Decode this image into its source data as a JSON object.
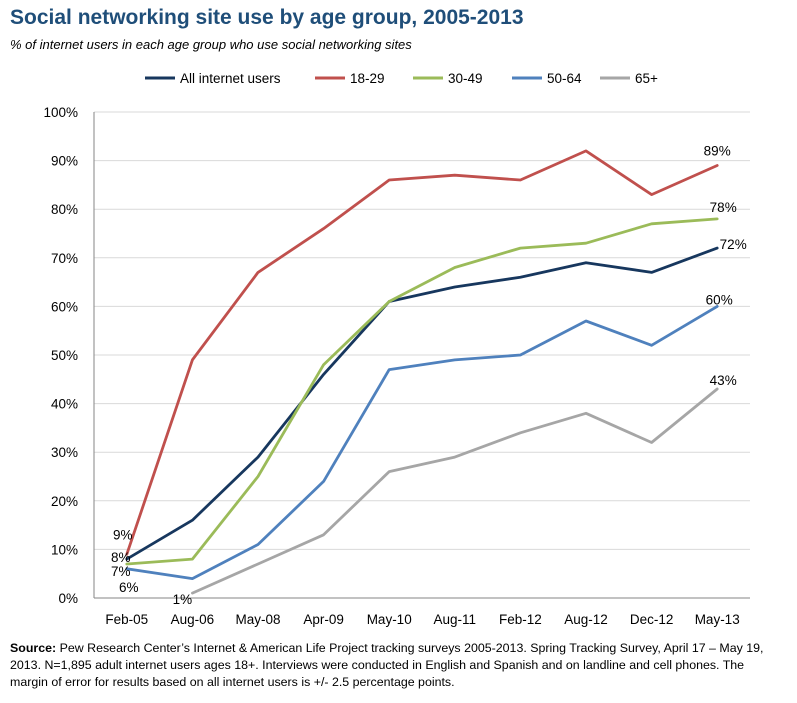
{
  "header": {
    "title": "Social networking site use by age group, 2005-2013",
    "subtitle": "% of internet users in each age group who use social networking sites"
  },
  "colors": {
    "title": "#1f4e79",
    "all": "#17375e",
    "age_18_29": "#c0504d",
    "age_30_49": "#9bbb59",
    "age_50_64": "#4f81bd",
    "age_65": "#a6a6a6"
  },
  "chart_data": {
    "type": "line",
    "title": "Social networking site use by age group, 2005-2013",
    "xlabel": "",
    "ylabel": "",
    "ylim": [
      0,
      100
    ],
    "yticks": [
      "0%",
      "10%",
      "20%",
      "30%",
      "40%",
      "50%",
      "60%",
      "70%",
      "80%",
      "90%",
      "100%"
    ],
    "grid": true,
    "legend": "top",
    "categories": [
      "Feb-05",
      "Aug-06",
      "May-08",
      "Apr-09",
      "May-10",
      "Aug-11",
      "Feb-12",
      "Aug-12",
      "Dec-12",
      "May-13"
    ],
    "series": [
      {
        "name": "All internet users",
        "color": "#17375e",
        "values": [
          8,
          16,
          29,
          46,
          61,
          64,
          66,
          69,
          67,
          72
        ]
      },
      {
        "name": "18-29",
        "color": "#c0504d",
        "values": [
          9,
          49,
          67,
          76,
          86,
          87,
          86,
          92,
          83,
          89
        ]
      },
      {
        "name": "30-49",
        "color": "#9bbb59",
        "values": [
          7,
          8,
          25,
          48,
          61,
          68,
          72,
          73,
          77,
          78
        ]
      },
      {
        "name": "50-64",
        "color": "#4f81bd",
        "values": [
          6,
          4,
          11,
          24,
          47,
          49,
          50,
          57,
          52,
          60
        ]
      },
      {
        "name": "65+",
        "color": "#a6a6a6",
        "values": [
          null,
          1,
          7,
          13,
          26,
          29,
          34,
          38,
          32,
          43
        ]
      }
    ],
    "data_labels": [
      {
        "text": "9%",
        "series": "18-29",
        "x": "Feb-05",
        "value": 9
      },
      {
        "text": "8%",
        "series": "All internet users",
        "x": "Feb-05",
        "value": 8
      },
      {
        "text": "7%",
        "series": "30-49",
        "x": "Feb-05",
        "value": 7
      },
      {
        "text": "6%",
        "series": "50-64",
        "x": "Feb-05",
        "value": 6
      },
      {
        "text": "1%",
        "series": "65+",
        "x": "Aug-06",
        "value": 1
      },
      {
        "text": "89%",
        "series": "18-29",
        "x": "May-13",
        "value": 89
      },
      {
        "text": "78%",
        "series": "30-49",
        "x": "May-13",
        "value": 78
      },
      {
        "text": "72%",
        "series": "All internet users",
        "x": "May-13",
        "value": 72
      },
      {
        "text": "60%",
        "series": "50-64",
        "x": "May-13",
        "value": 60
      },
      {
        "text": "43%",
        "series": "65+",
        "x": "May-13",
        "value": 43
      }
    ]
  },
  "footer": {
    "source_label": "Source:",
    "source_text": "Pew Research Center’s Internet & American Life Project tracking surveys 2005-2013. Spring Tracking Survey, April 17 – May 19, 2013. N=1,895 adult internet users ages 18+. Interviews were conducted in English and Spanish and on landline and cell phones.  The margin of error for results based on all internet users is +/- 2.5 percentage points."
  }
}
